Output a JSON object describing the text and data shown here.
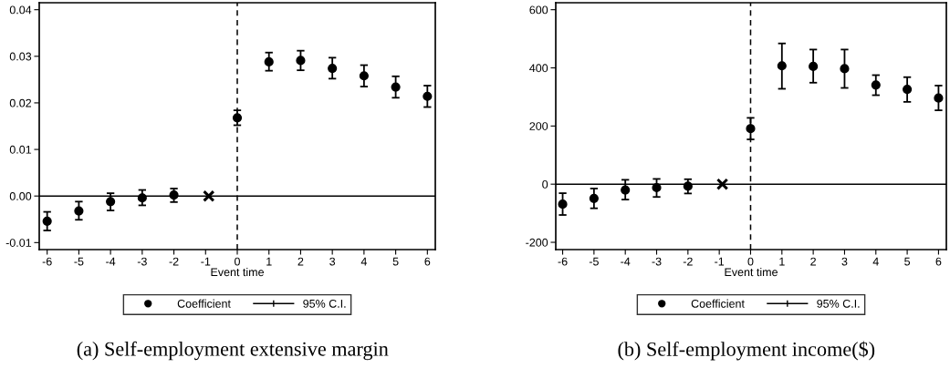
{
  "chart_data": [
    {
      "type": "scatter",
      "x": [
        -6,
        -5,
        -4,
        -3,
        -2,
        0,
        1,
        2,
        3,
        4,
        5,
        6
      ],
      "xlabel": "Event time",
      "xlim": [
        -6.25,
        6.25
      ],
      "xticks": [
        -6,
        -5,
        -4,
        -3,
        -2,
        -1,
        0,
        1,
        2,
        3,
        4,
        5,
        6
      ],
      "ylim": [
        -0.0115,
        0.0415
      ],
      "yticks": [
        {
          "value": -0.01,
          "label": "-0.01"
        },
        {
          "value": 0,
          "label": "0.00"
        },
        {
          "value": 0.01,
          "label": "0.01"
        },
        {
          "value": 0.02,
          "label": "0.02"
        },
        {
          "value": 0.03,
          "label": "0.03"
        },
        {
          "value": 0.04,
          "label": "0.04"
        }
      ],
      "series": [
        {
          "name": "Coefficient",
          "marker": "circle",
          "color": "#000000",
          "values": [
            -0.0054,
            -0.0032,
            -0.0012,
            -0.0004,
            0.0002,
            0.0168,
            0.0288,
            0.0291,
            0.0274,
            0.0258,
            0.0234,
            0.0214
          ],
          "errors": [
            [
              -0.0074,
              -0.0034
            ],
            [
              -0.0051,
              -0.0012
            ],
            [
              -0.0031,
              0.0006
            ],
            [
              -0.002,
              0.0013
            ],
            [
              -0.0013,
              0.0016
            ],
            [
              0.0152,
              0.0184
            ],
            [
              0.0269,
              0.0308
            ],
            [
              0.027,
              0.0312
            ],
            [
              0.0252,
              0.0297
            ],
            [
              0.0235,
              0.0281
            ],
            [
              0.0211,
              0.0257
            ],
            [
              0.0191,
              0.0237
            ]
          ]
        },
        {
          "marker": "cross",
          "color": "#000000",
          "x": [
            -0.9
          ],
          "values": [
            0
          ]
        }
      ],
      "ref_lines": [
        {
          "axis": "y",
          "value": 0,
          "line_style": "solid",
          "color": "#000000"
        },
        {
          "axis": "x",
          "value": 0,
          "line_style": "dashed",
          "color": "#000000"
        }
      ],
      "legend": "bottom",
      "grid": false,
      "annotations": [
        "(a) Self-employment extensive margin",
        "95% C.I."
      ]
    },
    {
      "type": "scatter",
      "x": [
        -6,
        -5,
        -4,
        -3,
        -2,
        0,
        1,
        2,
        3,
        4,
        5,
        6
      ],
      "xlabel": "Event time",
      "xlim": [
        -6.22,
        6.25
      ],
      "xticks": [
        -6,
        -5,
        -4,
        -3,
        -2,
        -1,
        0,
        1,
        2,
        3,
        4,
        5,
        6
      ],
      "ylim": [
        -225,
        624
      ],
      "yticks": [
        -200,
        0,
        200,
        400,
        600
      ],
      "series": [
        {
          "name": "Coefficient",
          "marker": "circle",
          "color": "#000000",
          "values": [
            -69,
            -49,
            -20,
            -12,
            -7,
            191,
            407,
            405,
            397,
            341,
            326,
            296
          ],
          "errors": [
            [
              -106,
              -31
            ],
            [
              -83,
              -15
            ],
            [
              -53,
              15
            ],
            [
              -44,
              18
            ],
            [
              -32,
              17
            ],
            [
              154,
              228
            ],
            [
              328,
              484
            ],
            [
              349,
              463
            ],
            [
              331,
              463
            ],
            [
              306,
              375
            ],
            [
              283,
              368
            ],
            [
              254,
              339
            ]
          ]
        },
        {
          "marker": "cross",
          "color": "#000000",
          "x": [
            -0.9
          ],
          "values": [
            0
          ]
        }
      ],
      "ref_lines": [
        {
          "axis": "y",
          "value": 0,
          "line_style": "solid",
          "color": "#000000"
        },
        {
          "axis": "x",
          "value": 0,
          "line_style": "dashed",
          "color": "#000000"
        }
      ],
      "legend": "bottom",
      "grid": false,
      "annotations": [
        "(b) Self-employment income($)",
        "95% C.I."
      ]
    }
  ]
}
